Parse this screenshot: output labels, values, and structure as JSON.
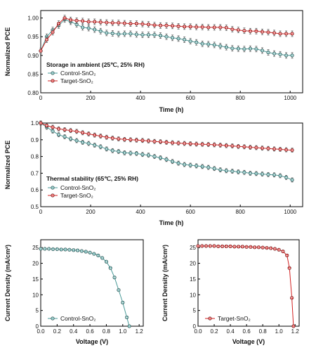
{
  "colors": {
    "control": "#4a9a98",
    "target": "#d32020"
  },
  "chart_data": [
    {
      "type": "line",
      "ylabel": "Normalized PCE",
      "xlabel": "Time (h)",
      "annotation": "Storage in ambient (25℃, 25% RH)",
      "xlim": [
        0,
        1050
      ],
      "ylim": [
        0.8,
        1.02
      ],
      "xticks": [
        0,
        200,
        400,
        600,
        800,
        1000
      ],
      "yticks": [
        0.8,
        0.85,
        0.9,
        0.95,
        1.0
      ],
      "ytick_labels": [
        "0.80",
        "0.85",
        "0.90",
        "0.95",
        "1.00"
      ],
      "series": [
        {
          "name": "Control-SnO₂",
          "color": "control",
          "marker": "circle-cross",
          "x": [
            0,
            24,
            48,
            72,
            96,
            120,
            144,
            168,
            192,
            216,
            240,
            264,
            288,
            312,
            336,
            360,
            384,
            408,
            432,
            456,
            480,
            504,
            528,
            552,
            576,
            600,
            624,
            648,
            672,
            696,
            720,
            744,
            768,
            792,
            816,
            840,
            864,
            888,
            912,
            936,
            960,
            984,
            1008
          ],
          "y": [
            0.912,
            0.95,
            0.968,
            0.98,
            0.996,
            0.99,
            0.983,
            0.975,
            0.973,
            0.969,
            0.965,
            0.96,
            0.959,
            0.957,
            0.958,
            0.958,
            0.956,
            0.955,
            0.955,
            0.955,
            0.953,
            0.95,
            0.947,
            0.945,
            0.942,
            0.938,
            0.935,
            0.931,
            0.93,
            0.928,
            0.925,
            0.922,
            0.919,
            0.918,
            0.917,
            0.918,
            0.917,
            0.913,
            0.908,
            0.905,
            0.903,
            0.9,
            0.9
          ]
        },
        {
          "name": "Target-SnO₂",
          "color": "target",
          "marker": "circle-cross",
          "x": [
            0,
            24,
            48,
            72,
            96,
            120,
            144,
            168,
            192,
            216,
            240,
            264,
            288,
            312,
            336,
            360,
            384,
            408,
            432,
            456,
            480,
            504,
            528,
            552,
            576,
            600,
            624,
            648,
            672,
            696,
            720,
            744,
            768,
            792,
            816,
            840,
            864,
            888,
            912,
            936,
            960,
            984,
            1008
          ],
          "y": [
            0.912,
            0.942,
            0.962,
            0.985,
            1.0,
            0.995,
            0.993,
            0.992,
            0.99,
            0.99,
            0.989,
            0.988,
            0.987,
            0.987,
            0.986,
            0.985,
            0.985,
            0.984,
            0.983,
            0.981,
            0.98,
            0.98,
            0.979,
            0.978,
            0.977,
            0.977,
            0.976,
            0.976,
            0.975,
            0.975,
            0.975,
            0.974,
            0.97,
            0.968,
            0.966,
            0.965,
            0.965,
            0.963,
            0.962,
            0.96,
            0.958,
            0.958,
            0.958
          ]
        }
      ]
    },
    {
      "type": "line",
      "ylabel": "Normalized PCE",
      "xlabel": "Time (h)",
      "annotation": "Thermal stability (65℃, 25% RH)",
      "xlim": [
        0,
        1050
      ],
      "ylim": [
        0.5,
        1.0
      ],
      "xticks": [
        0,
        200,
        400,
        600,
        800,
        1000
      ],
      "yticks": [
        0.5,
        0.6,
        0.7,
        0.8,
        0.9,
        1.0
      ],
      "ytick_labels": [
        "0.5",
        "0.6",
        "0.7",
        "0.8",
        "0.9",
        "1.0"
      ],
      "series": [
        {
          "name": "Control-SnO₂",
          "color": "control",
          "marker": "circle-cross",
          "x": [
            0,
            24,
            48,
            72,
            96,
            120,
            144,
            168,
            192,
            216,
            240,
            264,
            288,
            312,
            336,
            360,
            384,
            408,
            432,
            456,
            480,
            504,
            528,
            552,
            576,
            600,
            624,
            648,
            672,
            696,
            720,
            744,
            768,
            792,
            816,
            840,
            864,
            888,
            912,
            936,
            960,
            984,
            1008
          ],
          "y": [
            1.0,
            0.975,
            0.952,
            0.93,
            0.918,
            0.905,
            0.895,
            0.885,
            0.878,
            0.868,
            0.858,
            0.845,
            0.835,
            0.83,
            0.822,
            0.82,
            0.818,
            0.812,
            0.808,
            0.8,
            0.792,
            0.782,
            0.77,
            0.76,
            0.752,
            0.748,
            0.744,
            0.74,
            0.735,
            0.728,
            0.72,
            0.715,
            0.712,
            0.708,
            0.705,
            0.7,
            0.698,
            0.695,
            0.692,
            0.69,
            0.685,
            0.675,
            0.66
          ]
        },
        {
          "name": "Target-SnO₂",
          "color": "target",
          "marker": "circle-cross",
          "x": [
            0,
            24,
            48,
            72,
            96,
            120,
            144,
            168,
            192,
            216,
            240,
            264,
            288,
            312,
            336,
            360,
            384,
            408,
            432,
            456,
            480,
            504,
            528,
            552,
            576,
            600,
            624,
            648,
            672,
            696,
            720,
            744,
            768,
            792,
            816,
            840,
            864,
            888,
            912,
            936,
            960,
            984,
            1008
          ],
          "y": [
            1.0,
            0.985,
            0.975,
            0.965,
            0.96,
            0.955,
            0.95,
            0.942,
            0.935,
            0.928,
            0.922,
            0.915,
            0.91,
            0.905,
            0.902,
            0.9,
            0.898,
            0.896,
            0.893,
            0.89,
            0.888,
            0.885,
            0.882,
            0.88,
            0.878,
            0.876,
            0.874,
            0.873,
            0.872,
            0.87,
            0.868,
            0.865,
            0.863,
            0.86,
            0.858,
            0.855,
            0.853,
            0.85,
            0.848,
            0.845,
            0.843,
            0.84,
            0.838
          ]
        }
      ]
    },
    {
      "type": "line",
      "ylabel": "Current Density (mA/cm²)",
      "xlabel": "Voltage (V)",
      "xlim": [
        0,
        1.25
      ],
      "ylim": [
        0,
        27.5
      ],
      "xticks": [
        0.0,
        0.2,
        0.4,
        0.6,
        0.8,
        1.0,
        1.2
      ],
      "xtick_labels": [
        "0.0",
        "0.2",
        "0.4",
        "0.6",
        "0.8",
        "1.0",
        "1.2"
      ],
      "yticks": [
        0,
        5,
        10,
        15,
        20,
        25
      ],
      "series": [
        {
          "name": "Control-SnO₂",
          "color": "control",
          "marker": "circle-cross",
          "x": [
            0.0,
            0.05,
            0.1,
            0.15,
            0.2,
            0.25,
            0.3,
            0.35,
            0.4,
            0.45,
            0.5,
            0.55,
            0.6,
            0.65,
            0.7,
            0.75,
            0.8,
            0.85,
            0.9,
            0.95,
            1.0,
            1.05,
            1.08
          ],
          "y": [
            24.6,
            24.6,
            24.6,
            24.5,
            24.5,
            24.4,
            24.4,
            24.3,
            24.2,
            24.1,
            23.9,
            23.7,
            23.4,
            23.0,
            22.5,
            21.7,
            20.5,
            18.5,
            15.5,
            11.5,
            7.5,
            2.8,
            0.0
          ]
        }
      ]
    },
    {
      "type": "line",
      "ylabel": "Current Density (mA/cm²)",
      "xlabel": "Voltage (V)",
      "xlim": [
        0,
        1.25
      ],
      "ylim": [
        0,
        27.5
      ],
      "xticks": [
        0.0,
        0.2,
        0.4,
        0.6,
        0.8,
        1.0,
        1.2
      ],
      "xtick_labels": [
        "0.0",
        "0.2",
        "0.4",
        "0.6",
        "0.8",
        "1.0",
        "1.2"
      ],
      "yticks": [
        0,
        5,
        10,
        15,
        20,
        25
      ],
      "series": [
        {
          "name": "Target-SnO₂",
          "color": "target",
          "marker": "circle-cross",
          "x": [
            0.0,
            0.05,
            0.1,
            0.15,
            0.2,
            0.25,
            0.3,
            0.35,
            0.4,
            0.45,
            0.5,
            0.55,
            0.6,
            0.65,
            0.7,
            0.75,
            0.8,
            0.85,
            0.9,
            0.95,
            1.0,
            1.05,
            1.1,
            1.13,
            1.16,
            1.18
          ],
          "y": [
            25.5,
            25.5,
            25.5,
            25.5,
            25.5,
            25.4,
            25.4,
            25.4,
            25.4,
            25.3,
            25.3,
            25.3,
            25.2,
            25.2,
            25.1,
            25.1,
            25.0,
            24.9,
            24.8,
            24.6,
            24.3,
            23.8,
            22.5,
            18.5,
            9.0,
            0.0
          ]
        }
      ]
    }
  ]
}
